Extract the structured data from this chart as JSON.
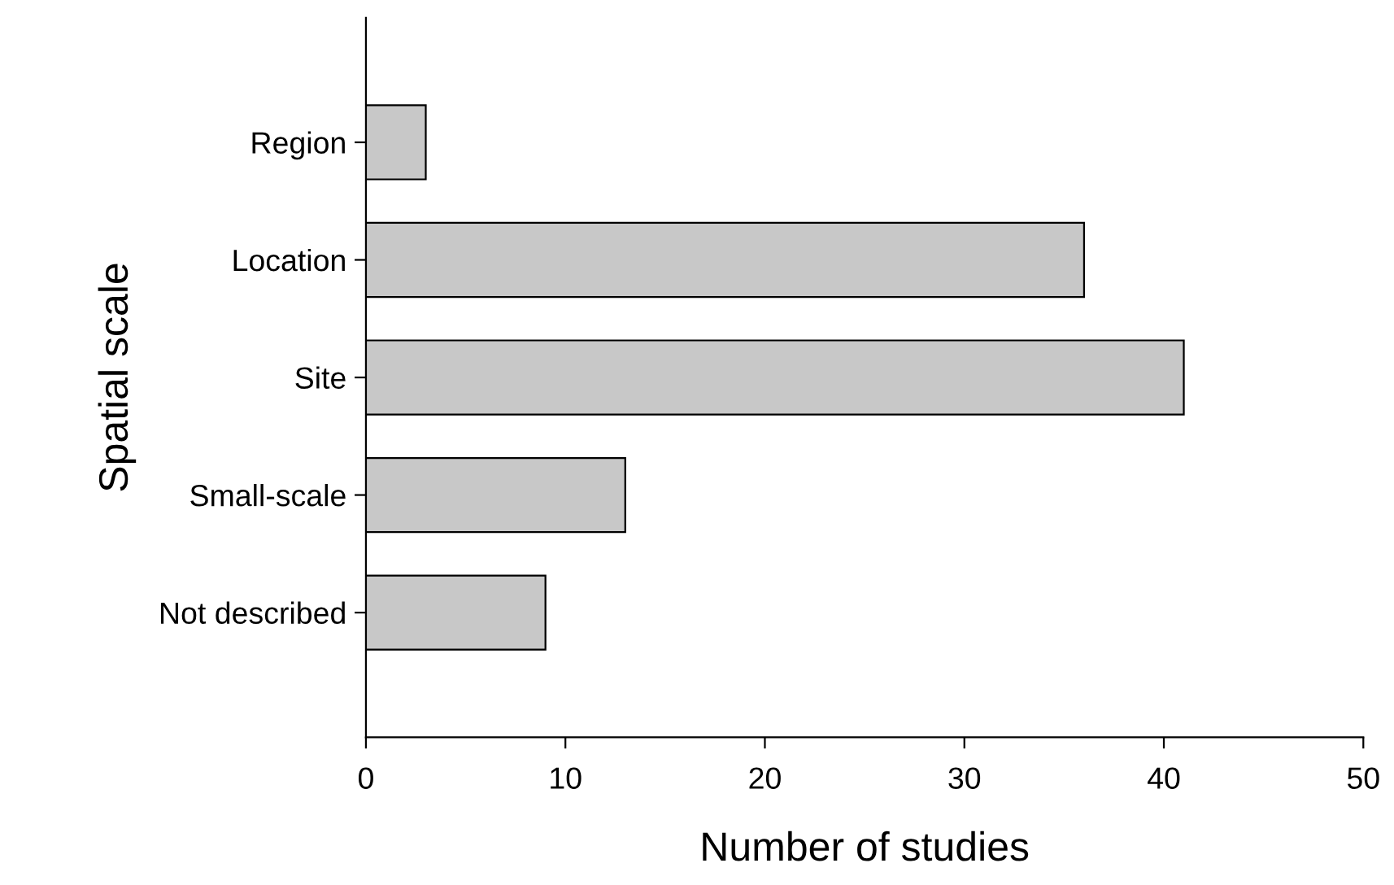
{
  "chart_data": {
    "type": "bar",
    "orientation": "horizontal",
    "xlabel": "Number of studies",
    "ylabel": "Spatial scale",
    "categories": [
      "Region",
      "Location",
      "Site",
      "Small-scale",
      "Not described"
    ],
    "values": [
      3,
      36,
      41,
      13,
      9
    ],
    "color": "#c8c8c8",
    "xlim": [
      0,
      50
    ],
    "xticks": [
      0,
      10,
      20,
      30,
      40,
      50
    ],
    "grid": false,
    "legend": false
  }
}
